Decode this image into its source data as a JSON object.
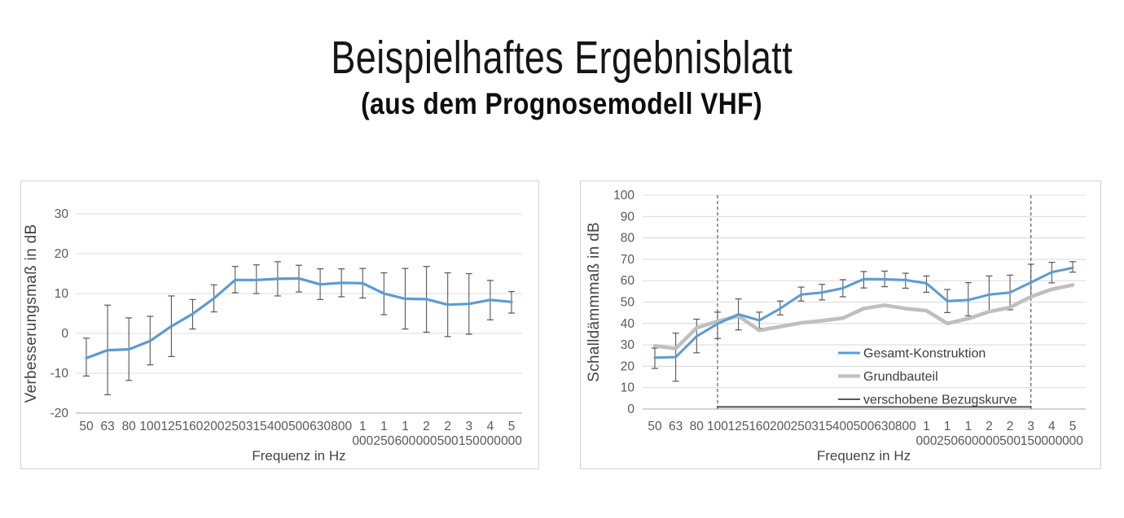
{
  "page": {
    "title": "Beispielhaftes Ergebnisblatt",
    "subtitle": "(aus dem Prognosemodell VHF)"
  },
  "colors": {
    "series_blue": "#5B9BD5",
    "series_gray": "#BFBFBF",
    "reference_black": "#3f3f3f",
    "error_bar": "#565656",
    "gridline": "#dcdcdc",
    "axis_line": "#c3c3c3",
    "dashed_line": "#5a5a5a",
    "tick_text": "#595959",
    "panel_border": "#d2d2d2"
  },
  "chart_data": [
    {
      "type": "line",
      "title": "",
      "xlabel": "Frequenz in Hz",
      "ylabel": "Verbesserungsmaß in dB",
      "ylim": [
        -20,
        30
      ],
      "yticks": [
        -20,
        -10,
        0,
        10,
        20,
        30
      ],
      "axis_line_at": -20,
      "grid": true,
      "legend_visible": false,
      "categories": [
        "50",
        "63",
        "80",
        "100",
        "125",
        "160",
        "200",
        "250",
        "315",
        "400",
        "500",
        "630",
        "800",
        "1 000",
        "1 250",
        "1 600",
        "2 000",
        "2 500",
        "3 150",
        "4 000",
        "5 000"
      ],
      "series": [
        {
          "name": "Verbesserungsmaß",
          "color": "#5B9BD5",
          "width": 3.2,
          "values": [
            -6.2,
            -4.2,
            -4.0,
            -1.9,
            1.8,
            4.9,
            8.8,
            13.4,
            13.4,
            13.7,
            13.8,
            12.3,
            12.7,
            12.6,
            10.0,
            8.7,
            8.6,
            7.2,
            7.4,
            8.4,
            7.9
          ],
          "error_low": [
            -10.7,
            -15.4,
            -11.8,
            -7.9,
            -5.8,
            1.1,
            5.4,
            10.2,
            10.0,
            9.4,
            10.4,
            8.5,
            9.2,
            8.9,
            4.7,
            1.1,
            0.3,
            -0.8,
            -0.2,
            3.4,
            5.1
          ],
          "error_high": [
            -1.2,
            7.1,
            3.9,
            4.3,
            9.4,
            8.5,
            12.2,
            16.8,
            17.2,
            18.0,
            17.1,
            16.2,
            16.2,
            16.3,
            15.2,
            16.3,
            16.8,
            15.2,
            15.0,
            13.3,
            10.5
          ]
        }
      ],
      "annotations": {
        "vertical_dashed_lines": []
      }
    },
    {
      "type": "line",
      "title": "",
      "xlabel": "Frequenz in Hz",
      "ylabel": "Schalldämmmaß in dB",
      "ylim": [
        0,
        100
      ],
      "yticks": [
        0,
        10,
        20,
        30,
        40,
        50,
        60,
        70,
        80,
        90,
        100
      ],
      "axis_line_at": 0,
      "grid": true,
      "legend_visible": true,
      "legend_position": "inside-lower-right",
      "categories": [
        "50",
        "63",
        "80",
        "100",
        "125",
        "160",
        "200",
        "250",
        "315",
        "400",
        "500",
        "630",
        "800",
        "1 000",
        "1 250",
        "1 600",
        "2 000",
        "2 500",
        "3 150",
        "4 000",
        "5 000"
      ],
      "series": [
        {
          "name": "Gesamt-Konstruktion",
          "color": "#5B9BD5",
          "width": 3.0,
          "values": [
            24.0,
            24.3,
            34.0,
            39.8,
            44.3,
            41.5,
            47.0,
            53.5,
            54.5,
            56.5,
            60.8,
            60.7,
            60.3,
            58.8,
            50.5,
            51.0,
            53.5,
            54.5,
            59.2,
            64.0,
            66.0
          ],
          "error_low": [
            19.0,
            13.0,
            26.3,
            33.0,
            37.0,
            37.8,
            44.0,
            50.5,
            51.0,
            52.5,
            56.6,
            57.2,
            56.5,
            54.6,
            45.1,
            43.6,
            45.7,
            46.4,
            52.5,
            59.0,
            64.0
          ],
          "error_high": [
            28.5,
            35.5,
            42.0,
            45.3,
            51.5,
            45.3,
            50.5,
            57.0,
            58.3,
            60.5,
            64.3,
            64.5,
            63.5,
            62.2,
            55.9,
            59.1,
            62.2,
            62.6,
            67.7,
            68.6,
            68.9
          ]
        },
        {
          "name": "Grundbauteil",
          "color": "#BFBFBF",
          "width": 4.6,
          "values": [
            29.5,
            28.3,
            38.0,
            41.0,
            43.5,
            36.8,
            38.5,
            40.3,
            41.3,
            42.5,
            47.0,
            48.5,
            47.0,
            46.0,
            40.0,
            42.3,
            45.5,
            47.5,
            52.5,
            56.0,
            58.0
          ]
        },
        {
          "name": "verschobene Bezugskurve",
          "color": "#3f3f3f",
          "width": 1.8,
          "values": [
            null,
            null,
            null,
            1,
            1,
            1,
            1,
            1,
            1,
            1,
            1,
            1,
            1,
            1,
            1,
            1,
            1,
            1,
            1,
            null,
            null
          ]
        }
      ],
      "annotations": {
        "vertical_dashed_lines": [
          "100",
          "3 150"
        ]
      }
    }
  ]
}
